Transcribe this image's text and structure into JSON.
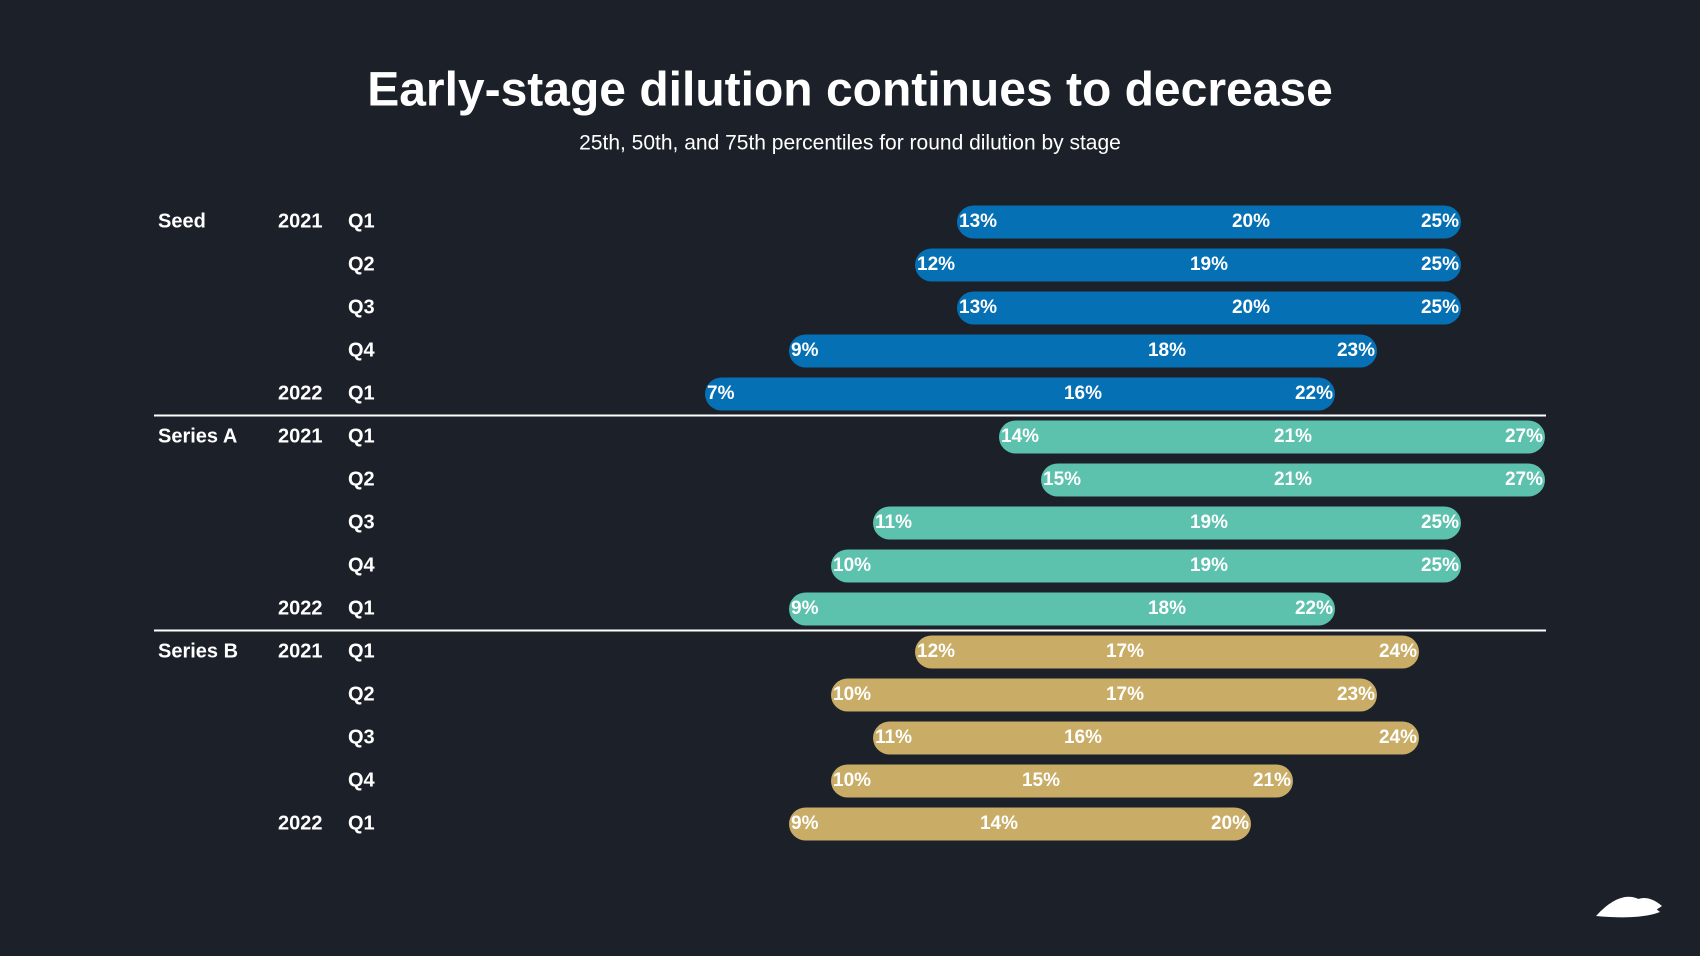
{
  "chart_data": {
    "type": "range",
    "title": "Early-stage dilution continues to decrease",
    "subtitle": "25th, 50th, and 75th percentiles for round dilution by stage",
    "groups": [
      {
        "name": "Seed",
        "color": "#0670b4",
        "rows": [
          {
            "year": "2021",
            "quarter": "Q1",
            "values": [
              13,
              20,
              25
            ],
            "value_labels": [
              "13%",
              "20%",
              "25%"
            ]
          },
          {
            "year": null,
            "quarter": "Q2",
            "values": [
              12,
              19,
              25
            ],
            "value_labels": [
              "12%",
              "19%",
              "25%"
            ]
          },
          {
            "year": null,
            "quarter": "Q3",
            "values": [
              13,
              20,
              25
            ],
            "value_labels": [
              "13%",
              "20%",
              "25%"
            ]
          },
          {
            "year": null,
            "quarter": "Q4",
            "values": [
              9,
              18,
              23
            ],
            "value_labels": [
              "9%",
              "18%",
              "23%"
            ]
          },
          {
            "year": "2022",
            "quarter": "Q1",
            "values": [
              7,
              16,
              22
            ],
            "value_labels": [
              "7%",
              "16%",
              "22%"
            ]
          }
        ]
      },
      {
        "name": "Series A",
        "color": "#5cc1ad",
        "rows": [
          {
            "year": "2021",
            "quarter": "Q1",
            "values": [
              14,
              21,
              27
            ],
            "value_labels": [
              "14%",
              "21%",
              "27%"
            ]
          },
          {
            "year": null,
            "quarter": "Q2",
            "values": [
              15,
              21,
              27
            ],
            "value_labels": [
              "15%",
              "21%",
              "27%"
            ]
          },
          {
            "year": null,
            "quarter": "Q3",
            "values": [
              11,
              19,
              25
            ],
            "value_labels": [
              "11%",
              "19%",
              "25%"
            ]
          },
          {
            "year": null,
            "quarter": "Q4",
            "values": [
              10,
              19,
              25
            ],
            "value_labels": [
              "10%",
              "19%",
              "25%"
            ]
          },
          {
            "year": "2022",
            "quarter": "Q1",
            "values": [
              9,
              18,
              22
            ],
            "value_labels": [
              "9%",
              "18%",
              "22%"
            ]
          }
        ]
      },
      {
        "name": "Series B",
        "color": "#c9ac66",
        "rows": [
          {
            "year": "2021",
            "quarter": "Q1",
            "values": [
              12,
              17,
              24
            ],
            "value_labels": [
              "12%",
              "17%",
              "24%"
            ]
          },
          {
            "year": null,
            "quarter": "Q2",
            "values": [
              10,
              17,
              23
            ],
            "value_labels": [
              "10%",
              "17%",
              "23%"
            ]
          },
          {
            "year": null,
            "quarter": "Q3",
            "values": [
              11,
              16,
              24
            ],
            "value_labels": [
              "11%",
              "16%",
              "24%"
            ]
          },
          {
            "year": null,
            "quarter": "Q4",
            "values": [
              10,
              15,
              21
            ],
            "value_labels": [
              "10%",
              "15%",
              "21%"
            ]
          },
          {
            "year": "2022",
            "quarter": "Q1",
            "values": [
              9,
              14,
              20
            ],
            "value_labels": [
              "9%",
              "14%",
              "20%"
            ]
          }
        ]
      }
    ]
  }
}
